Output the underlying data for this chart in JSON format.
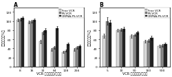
{
  "panel_A": {
    "title": "A",
    "xlabel": "VCR 浓度（纳克/毫升）",
    "ylabel": "细胞存活率（%）",
    "x_labels": [
      "8",
      "16",
      "32",
      "64",
      "128",
      "256"
    ],
    "series": {
      "Free VCR": [
        102,
        98,
        55,
        38,
        32,
        38
      ],
      "PS-VCR": [
        104,
        100,
        75,
        42,
        35,
        42
      ],
      "CRPNA-PS-VCR": [
        107,
        103,
        80,
        85,
        50,
        45
      ]
    },
    "errors": {
      "Free VCR": [
        3,
        3,
        4,
        3,
        2,
        3
      ],
      "PS-VCR": [
        3,
        3,
        4,
        3,
        2,
        3
      ],
      "CRPNA-PS-VCR": [
        3,
        3,
        4,
        4,
        3,
        3
      ]
    },
    "colors": {
      "Free VCR": "#d8d8d8",
      "PS-VCR": "#888888",
      "CRPNA-PS-VCR": "#222222"
    },
    "ylim": [
      0,
      130
    ],
    "yticks": [
      0,
      20,
      40,
      60,
      80,
      100,
      120
    ]
  },
  "panel_B": {
    "title": "B",
    "xlabel": "VCR 浓度（纳克/毫升）",
    "ylabel": "细胞存活率（%）",
    "x_labels": [
      "5",
      "10",
      "50",
      "100",
      "500"
    ],
    "series": {
      "Free VCR": [
        68,
        80,
        67,
        55,
        45
      ],
      "PS-VCR": [
        100,
        82,
        70,
        57,
        47
      ],
      "CRPNA-PS-VCR": [
        97,
        83,
        75,
        63,
        50
      ]
    },
    "errors": {
      "Free VCR": [
        5,
        3,
        4,
        3,
        3
      ],
      "PS-VCR": [
        8,
        3,
        3,
        3,
        3
      ],
      "CRPNA-PS-VCR": [
        6,
        4,
        4,
        4,
        3
      ]
    },
    "colors": {
      "Free VCR": "#d8d8d8",
      "PS-VCR": "#888888",
      "CRPNA-PS-VCR": "#222222"
    },
    "ylim": [
      0,
      130
    ],
    "yticks": [
      0,
      20,
      40,
      60,
      80,
      100,
      120
    ]
  },
  "background_color": "#ffffff",
  "bar_width": 0.22,
  "fontsize_label": 3.5,
  "fontsize_tick": 3.2,
  "fontsize_title": 5.5,
  "fontsize_legend": 3.0
}
